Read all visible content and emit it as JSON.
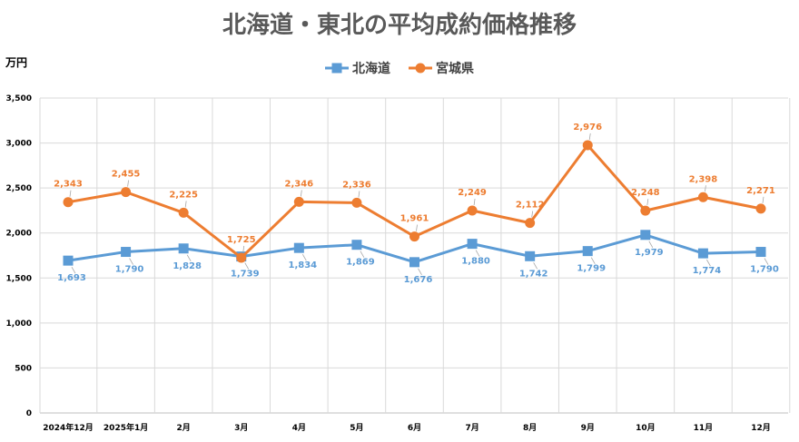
{
  "chart_data": {
    "type": "line",
    "title": "北海道・東北の平均成約価格推移",
    "ylabel": "万円",
    "ylim": [
      0,
      3500
    ],
    "yticks": [
      0,
      500,
      1000,
      1500,
      2000,
      2500,
      3000,
      3500
    ],
    "ytick_labels": [
      "0",
      "500",
      "1,000",
      "1,500",
      "2,000",
      "2,500",
      "3,000",
      "3,500"
    ],
    "categories": [
      "2024年12月",
      "2025年1月",
      "2月",
      "3月",
      "4月",
      "5月",
      "6月",
      "7月",
      "8月",
      "9月",
      "10月",
      "11月",
      "12月"
    ],
    "grid": true,
    "legend_position": "top",
    "series": [
      {
        "name": "北海道",
        "color": "#5B9BD5",
        "marker": "square",
        "label_position": "below",
        "values": [
          1693,
          1790,
          1828,
          1739,
          1834,
          1869,
          1676,
          1880,
          1742,
          1799,
          1979,
          1774,
          1790
        ],
        "labels": [
          "1,693",
          "1,790",
          "1,828",
          "1,739",
          "1,834",
          "1,869",
          "1,676",
          "1,880",
          "1,742",
          "1,799",
          "1,979",
          "1,774",
          "1,790"
        ]
      },
      {
        "name": "宮城県",
        "color": "#ED7D31",
        "marker": "circle",
        "label_position": "above",
        "values": [
          2343,
          2455,
          2225,
          1725,
          2346,
          2336,
          1961,
          2249,
          2112,
          2976,
          2248,
          2398,
          2271
        ],
        "labels": [
          "2,343",
          "2,455",
          "2,225",
          "1,725",
          "2,346",
          "2,336",
          "1,961",
          "2,249",
          "2,112",
          "2,976",
          "2,248",
          "2,398",
          "2,271"
        ]
      }
    ]
  }
}
